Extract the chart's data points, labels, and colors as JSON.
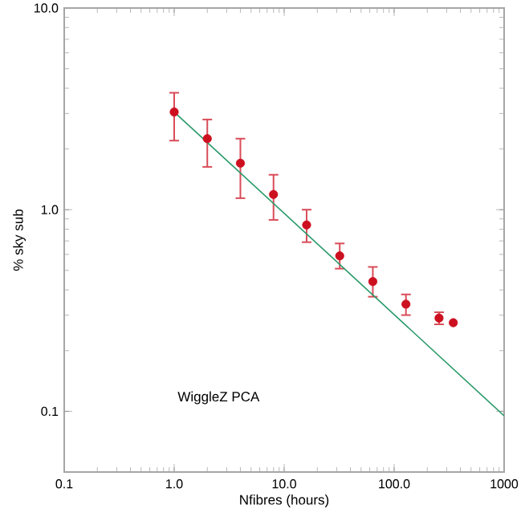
{
  "chart_data": {
    "type": "scatter",
    "xlabel": "Nfibres (hours)",
    "ylabel": "% sky sub",
    "log": "xy",
    "grid": false,
    "marker": "circle",
    "xlim": [
      0.1,
      1000
    ],
    "ylim": [
      0.05,
      10
    ],
    "xticks": [
      0.1,
      {
        "value": 1,
        "label": "1.0"
      },
      {
        "value": 10,
        "label": "10.0"
      },
      {
        "value": 100,
        "label": "100.0"
      },
      1000
    ],
    "yticks": [
      0.1,
      {
        "value": 1,
        "label": "1.0"
      },
      {
        "value": 10,
        "label": "10.0"
      }
    ],
    "annotations": [
      "WiggleZ PCA"
    ],
    "series": [
      {
        "color": "#cc1020",
        "x": [
          1,
          2,
          4,
          8,
          16,
          32,
          64,
          128,
          256,
          345
        ],
        "values": [
          3.05,
          2.25,
          1.7,
          1.19,
          0.84,
          0.59,
          0.44,
          0.34,
          0.29,
          0.275
        ],
        "errors": [
          [
            2.2,
            3.8
          ],
          [
            1.63,
            2.8
          ],
          [
            1.14,
            2.25
          ],
          [
            0.89,
            1.49
          ],
          [
            0.69,
            1.0
          ],
          [
            0.51,
            0.68
          ],
          [
            0.37,
            0.52
          ],
          [
            0.3,
            0.38
          ],
          [
            0.27,
            0.31
          ],
          null
        ]
      },
      {
        "type": "line",
        "color": "#2a9a6a",
        "line_style": "solid",
        "marker": "none",
        "x": [
          1,
          1000
        ],
        "values": [
          3.05,
          0.095
        ]
      }
    ]
  }
}
